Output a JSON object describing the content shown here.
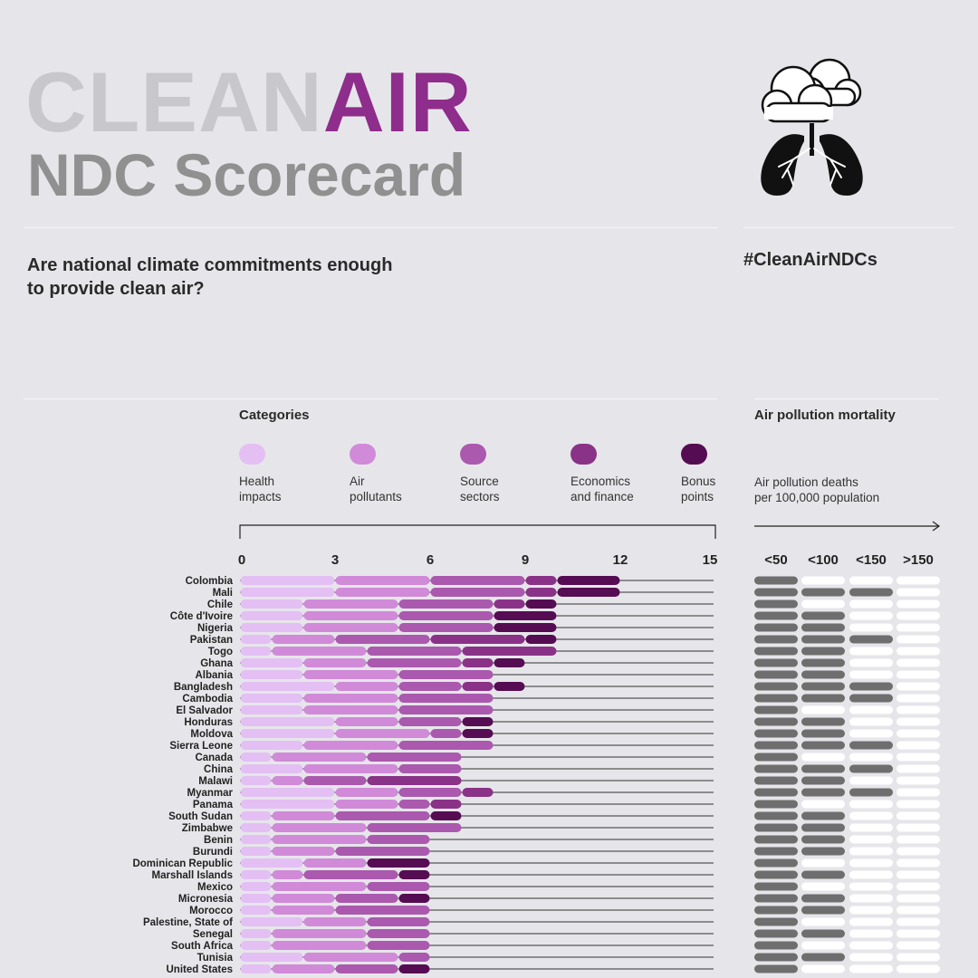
{
  "header": {
    "title_light": "CLEAN",
    "title_accent": "AIR",
    "subtitle": "NDC Scorecard",
    "question": "Are national climate commitments enough to provide clean air?",
    "hashtag": "#CleanAirNDCs",
    "logo_icon": "lungs-cloud-icon"
  },
  "legend": {
    "title": "Categories",
    "items": [
      {
        "label": "Health\nimpacts",
        "color": "#e3bff3"
      },
      {
        "label": "Air\npollutants",
        "color": "#d08ad8"
      },
      {
        "label": "Source\nsectors",
        "color": "#aa59ae"
      },
      {
        "label": "Economics\nand finance",
        "color": "#8a3287"
      },
      {
        "label": "Bonus\npoints",
        "color": "#550c52"
      }
    ]
  },
  "mortality": {
    "title": "Air pollution mortality",
    "label": "Air pollution deaths\nper 100,000 population",
    "categories": [
      "<50",
      "<100",
      "<150",
      ">150"
    ],
    "filled_color": "#6e6e6e",
    "empty_color": "#ffffff"
  },
  "chart_data": {
    "type": "bar",
    "stacked": true,
    "orientation": "horizontal",
    "xlim": [
      0,
      15
    ],
    "xticks": [
      0,
      3,
      6,
      9,
      12,
      15
    ],
    "series_names": [
      "Health impacts",
      "Air pollutants",
      "Source sectors",
      "Economics and finance",
      "Bonus points"
    ],
    "rows": [
      {
        "country": "Colombia",
        "values": [
          3,
          3,
          3,
          1,
          2
        ],
        "mortality": 1
      },
      {
        "country": "Mali",
        "values": [
          3,
          3,
          3,
          1,
          2
        ],
        "mortality": 3
      },
      {
        "country": "Chile",
        "values": [
          2,
          3,
          3,
          1,
          1
        ],
        "mortality": 1
      },
      {
        "country": "Côte d'Ivoire",
        "values": [
          2,
          3,
          3,
          0,
          2
        ],
        "mortality": 2
      },
      {
        "country": "Nigeria",
        "values": [
          2,
          3,
          3,
          0,
          2
        ],
        "mortality": 2
      },
      {
        "country": "Pakistan",
        "values": [
          1,
          2,
          3,
          3,
          1
        ],
        "mortality": 3
      },
      {
        "country": "Togo",
        "values": [
          1,
          3,
          3,
          3,
          0
        ],
        "mortality": 2
      },
      {
        "country": "Ghana",
        "values": [
          2,
          2,
          3,
          1,
          1
        ],
        "mortality": 2
      },
      {
        "country": "Albania",
        "values": [
          2,
          3,
          3,
          0,
          0
        ],
        "mortality": 2
      },
      {
        "country": "Bangladesh",
        "values": [
          3,
          2,
          2,
          1,
          1
        ],
        "mortality": 3
      },
      {
        "country": "Cambodia",
        "values": [
          2,
          3,
          3,
          0,
          0
        ],
        "mortality": 3
      },
      {
        "country": "El Salvador",
        "values": [
          2,
          3,
          3,
          0,
          0
        ],
        "mortality": 1
      },
      {
        "country": "Honduras",
        "values": [
          3,
          2,
          2,
          0,
          1
        ],
        "mortality": 2
      },
      {
        "country": "Moldova",
        "values": [
          3,
          3,
          1,
          0,
          1
        ],
        "mortality": 2
      },
      {
        "country": "Sierra Leone",
        "values": [
          2,
          3,
          3,
          0,
          0
        ],
        "mortality": 3
      },
      {
        "country": "Canada",
        "values": [
          1,
          3,
          3,
          0,
          0
        ],
        "mortality": 1
      },
      {
        "country": "China",
        "values": [
          2,
          3,
          2,
          0,
          0
        ],
        "mortality": 3
      },
      {
        "country": "Malawi",
        "values": [
          1,
          1,
          2,
          3,
          0
        ],
        "mortality": 2
      },
      {
        "country": "Myanmar",
        "values": [
          3,
          2,
          2,
          1,
          0
        ],
        "mortality": 3
      },
      {
        "country": "Panama",
        "values": [
          3,
          2,
          1,
          1,
          0
        ],
        "mortality": 1
      },
      {
        "country": "South Sudan",
        "values": [
          1,
          2,
          3,
          0,
          1
        ],
        "mortality": 2
      },
      {
        "country": "Zimbabwe",
        "values": [
          1,
          3,
          3,
          0,
          0
        ],
        "mortality": 2
      },
      {
        "country": "Benin",
        "values": [
          1,
          3,
          2,
          0,
          0
        ],
        "mortality": 2
      },
      {
        "country": "Burundi",
        "values": [
          1,
          2,
          3,
          0,
          0
        ],
        "mortality": 2
      },
      {
        "country": "Dominican Republic",
        "values": [
          2,
          2,
          0,
          0,
          2
        ],
        "mortality": 1
      },
      {
        "country": "Marshall Islands",
        "values": [
          1,
          1,
          3,
          0,
          1
        ],
        "mortality": 2
      },
      {
        "country": "Mexico",
        "values": [
          1,
          3,
          2,
          0,
          0
        ],
        "mortality": 1
      },
      {
        "country": "Micronesia",
        "values": [
          1,
          2,
          2,
          0,
          1
        ],
        "mortality": 2
      },
      {
        "country": "Morocco",
        "values": [
          1,
          2,
          3,
          0,
          0
        ],
        "mortality": 2
      },
      {
        "country": "Palestine, State of",
        "values": [
          2,
          2,
          2,
          0,
          0
        ],
        "mortality": 1
      },
      {
        "country": "Senegal",
        "values": [
          1,
          3,
          2,
          0,
          0
        ],
        "mortality": 2
      },
      {
        "country": "South Africa",
        "values": [
          1,
          3,
          2,
          0,
          0
        ],
        "mortality": 1
      },
      {
        "country": "Tunisia",
        "values": [
          2,
          3,
          1,
          0,
          0
        ],
        "mortality": 2
      },
      {
        "country": "United States",
        "values": [
          1,
          2,
          2,
          0,
          1
        ],
        "mortality": 1
      }
    ]
  }
}
